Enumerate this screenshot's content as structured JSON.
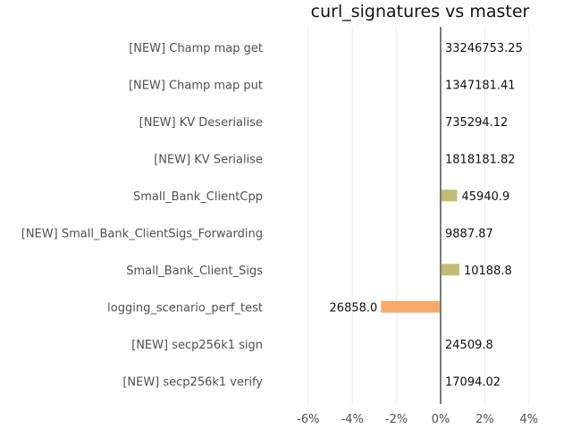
{
  "chart_data": {
    "type": "bar",
    "orientation": "horizontal",
    "title": "curl_signatures vs master",
    "xlabel": "",
    "ylabel": "",
    "xlim": [
      -6.2,
      4
    ],
    "xticks": [
      -6,
      -4,
      -2,
      0,
      2,
      4
    ],
    "xtick_labels": [
      "-6%",
      "-4%",
      "-2%",
      "0%",
      "2%",
      "4%"
    ],
    "grid": "vertical",
    "categories": [
      "[NEW] Champ map get",
      "[NEW] Champ map put",
      "[NEW] KV Deserialise",
      "[NEW] KV Serialise",
      "Small_Bank_ClientCpp",
      "[NEW] Small_Bank_ClientSigs_Forwarding",
      "Small_Bank_Client_Sigs",
      "logging_scenario_perf_test",
      "[NEW] secp256k1 sign",
      "[NEW] secp256k1 verify"
    ],
    "values": [
      0,
      0,
      0,
      0,
      0.75,
      0,
      0.85,
      -2.7,
      0,
      0
    ],
    "data_labels": [
      "33246753.25",
      "1347181.41",
      "735294.12",
      "1818181.82",
      "45940.9",
      "9887.87",
      "10188.8",
      "26858.0",
      "24509.8",
      "17094.02"
    ],
    "colors": {
      "positive": "#c3bc74",
      "negative": "#f5aa6b",
      "zero_line": "#7a7a7a",
      "grid": "#ececec"
    }
  }
}
